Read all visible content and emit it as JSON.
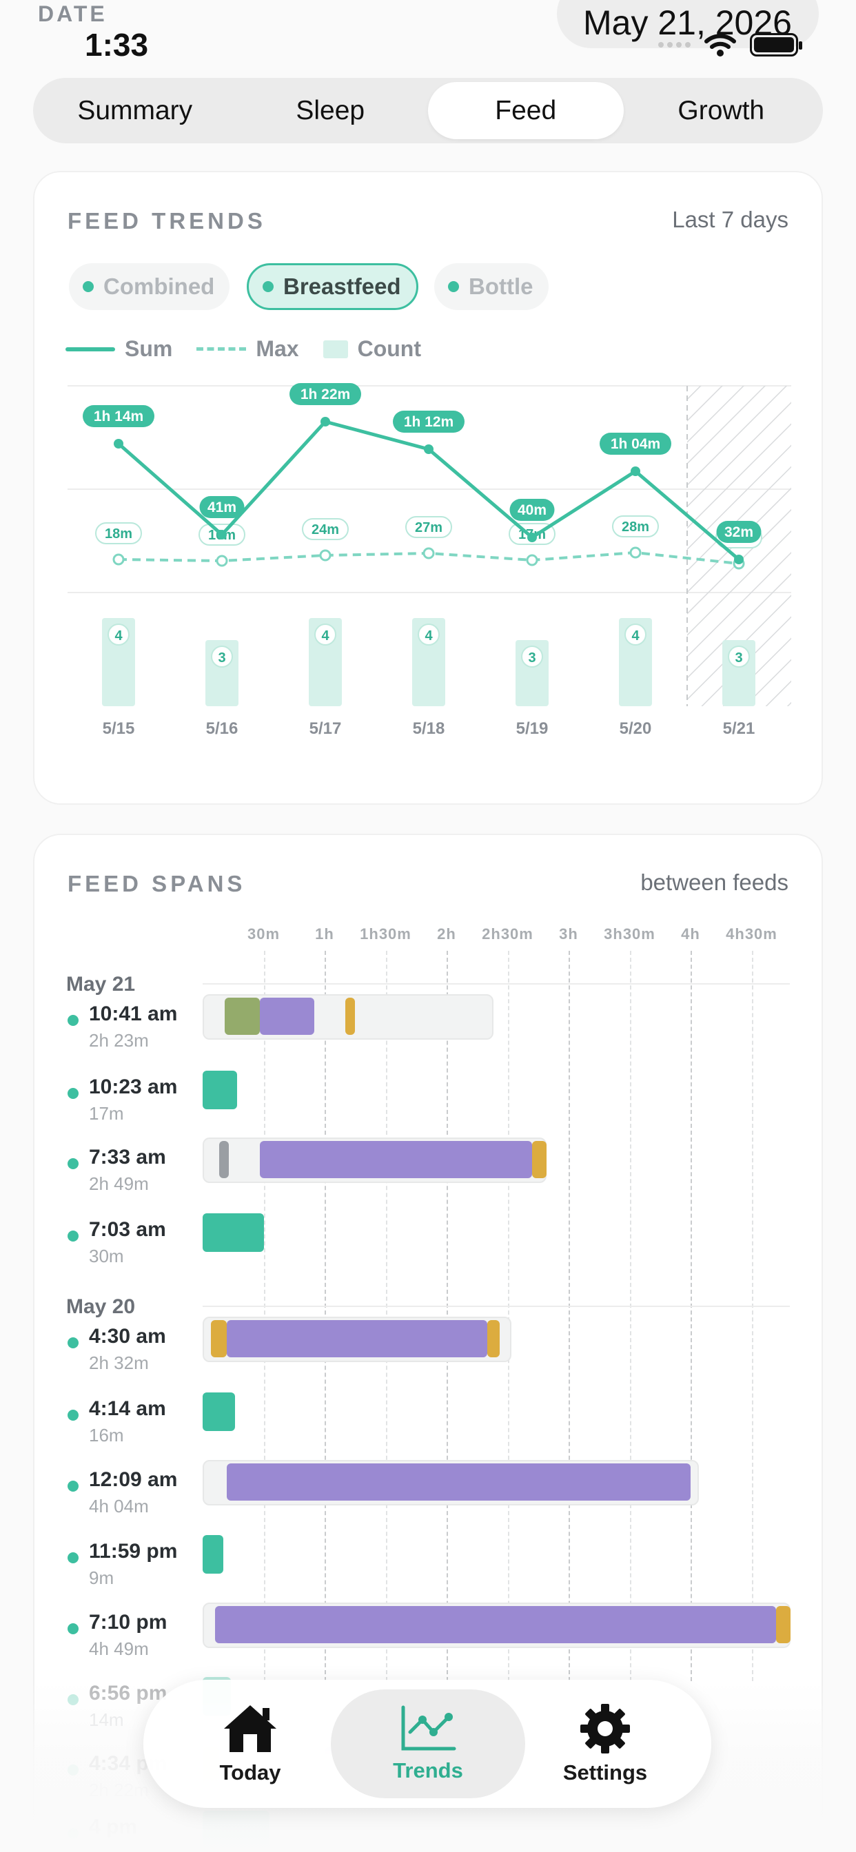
{
  "status": {
    "date_label": "DATE",
    "time": "1:33",
    "date": "May 21, 2026"
  },
  "tabs": [
    {
      "label": "Summary",
      "active": false
    },
    {
      "label": "Sleep",
      "active": false
    },
    {
      "label": "Feed",
      "active": true
    },
    {
      "label": "Growth",
      "active": false
    }
  ],
  "trends": {
    "title": "FEED TRENDS",
    "range": "Last 7 days",
    "filters": [
      {
        "label": "Combined",
        "active": false
      },
      {
        "label": "Breastfeed",
        "active": true
      },
      {
        "label": "Bottle",
        "active": false
      }
    ],
    "legend": {
      "sum": "Sum",
      "max": "Max",
      "count": "Count"
    }
  },
  "chart_data": {
    "type": "line",
    "x": [
      "5/15",
      "5/16",
      "5/17",
      "5/18",
      "5/19",
      "5/20",
      "5/21"
    ],
    "series": [
      {
        "name": "Sum",
        "values": [
          74,
          41,
          82,
          72,
          40,
          64,
          32
        ],
        "labels": [
          "1h 14m",
          "41m",
          "1h 22m",
          "1h 12m",
          "40m",
          "1h 04m",
          "32m"
        ]
      },
      {
        "name": "Max",
        "values": [
          18,
          16,
          24,
          27,
          17,
          28,
          12
        ],
        "labels": [
          "18m",
          "16m",
          "24m",
          "27m",
          "17m",
          "28m",
          "12m"
        ]
      },
      {
        "name": "Count",
        "values": [
          4,
          3,
          4,
          4,
          3,
          4,
          3
        ]
      }
    ],
    "partial_day": "5/21",
    "colors": {
      "sum": "#3dbfa0",
      "max": "#7fd6c2",
      "count": "#d6f1ea"
    }
  },
  "spans": {
    "title": "FEED SPANS",
    "subtitle": "between feeds",
    "axis": [
      "30m",
      "1h",
      "1h30m",
      "2h",
      "2h30m",
      "3h",
      "3h30m",
      "4h",
      "4h30m"
    ],
    "days": [
      {
        "label": "May 21"
      },
      {
        "label": "May 20"
      }
    ],
    "rows": [
      {
        "time": "10:41 am",
        "dur": "2h 23m"
      },
      {
        "time": "10:23 am",
        "dur": "17m"
      },
      {
        "time": "7:33 am",
        "dur": "2h 49m"
      },
      {
        "time": "7:03 am",
        "dur": "30m"
      },
      {
        "time": "4:30 am",
        "dur": "2h 32m"
      },
      {
        "time": "4:14 am",
        "dur": "16m"
      },
      {
        "time": "12:09 am",
        "dur": "4h 04m"
      },
      {
        "time": "11:59 pm",
        "dur": "9m"
      },
      {
        "time": "7:10 pm",
        "dur": "4h 49m"
      },
      {
        "time": "6:56 pm",
        "dur": "14m"
      },
      {
        "time": "4:34 pm",
        "dur": "2h 22m"
      },
      {
        "time": "4 pm",
        "dur": ""
      }
    ],
    "colors": {
      "feed": "#3dbfa0",
      "sleep": "#9a89d2",
      "play": "#94ab6b",
      "diaper": "#dcac3f",
      "other": "#9a9ea3"
    }
  },
  "nav": {
    "today": "Today",
    "trends": "Trends",
    "settings": "Settings"
  }
}
